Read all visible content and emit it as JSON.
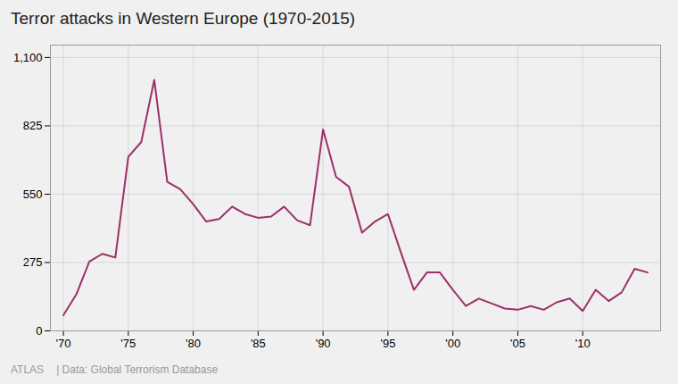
{
  "chart_data": {
    "type": "line",
    "title": "Terror attacks in Western Europe (1970-2015)",
    "annotations": [
      "ATLAS",
      "|  Data: Global Terrorism Database"
    ],
    "x": [
      1970,
      1971,
      1972,
      1973,
      1974,
      1975,
      1976,
      1977,
      1978,
      1979,
      1980,
      1981,
      1982,
      1983,
      1984,
      1985,
      1986,
      1987,
      1988,
      1989,
      1990,
      1991,
      1992,
      1993,
      1994,
      1995,
      1996,
      1997,
      1998,
      1999,
      2000,
      2001,
      2002,
      2003,
      2004,
      2005,
      2006,
      2007,
      2008,
      2009,
      2010,
      2011,
      2012,
      2013,
      2014,
      2015
    ],
    "values": [
      63,
      147,
      279,
      310,
      295,
      700,
      760,
      1010,
      600,
      570,
      510,
      440,
      450,
      500,
      470,
      455,
      460,
      500,
      445,
      425,
      810,
      620,
      580,
      395,
      440,
      470,
      315,
      165,
      235,
      235,
      165,
      100,
      130,
      110,
      90,
      85,
      100,
      85,
      115,
      130,
      80,
      165,
      120,
      155,
      250,
      235
    ],
    "color": "#9b3068",
    "xlim": [
      1969,
      2016
    ],
    "xticks": [
      {
        "value": 1970,
        "label": "'70"
      },
      {
        "value": 1975,
        "label": "'75"
      },
      {
        "value": 1980,
        "label": "'80"
      },
      {
        "value": 1985,
        "label": "'85"
      },
      {
        "value": 1990,
        "label": "'90"
      },
      {
        "value": 1995,
        "label": "'95"
      },
      {
        "value": 2000,
        "label": "'00"
      },
      {
        "value": 2005,
        "label": "'05"
      },
      {
        "value": 2010,
        "label": "'10"
      }
    ],
    "ylim": [
      0,
      1150
    ],
    "yticks": [
      0,
      275,
      550,
      825,
      {
        "value": 1100,
        "label": "1,100"
      }
    ],
    "grid": true
  }
}
